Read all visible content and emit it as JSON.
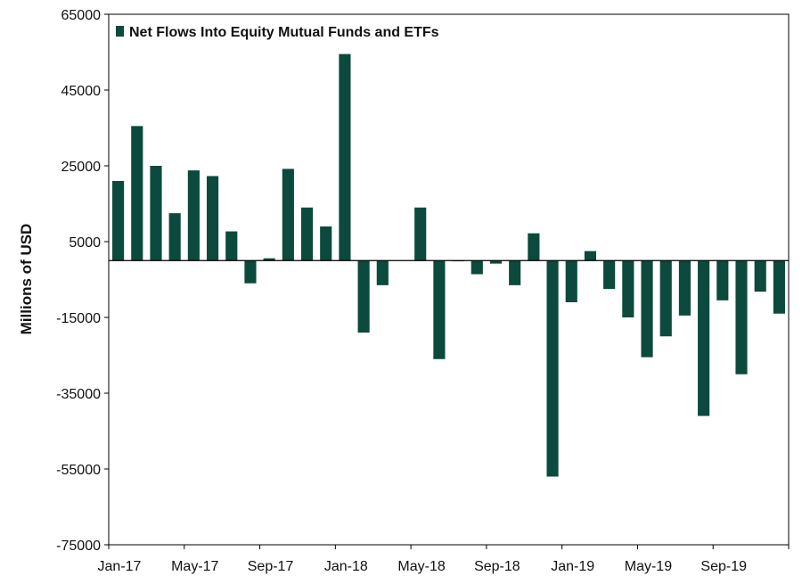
{
  "chart_data": {
    "type": "bar",
    "title": "",
    "xlabel": "",
    "ylabel": "Millions of USD",
    "ylim": [
      -75000,
      65000
    ],
    "yticks": [
      65000,
      45000,
      25000,
      5000,
      -15000,
      -35000,
      -55000,
      -75000
    ],
    "x_tick_labels": [
      "Jan-17",
      "May-17",
      "Sep-17",
      "Jan-18",
      "May-18",
      "Sep-18",
      "Jan-19",
      "May-19",
      "Sep-19"
    ],
    "x_tick_every": 4,
    "grid": false,
    "legend_position": "top-left",
    "colors": {
      "bar": "#0b4a3c",
      "axis": "#000000"
    },
    "categories": [
      "Jan-17",
      "Feb-17",
      "Mar-17",
      "Apr-17",
      "May-17",
      "Jun-17",
      "Jul-17",
      "Aug-17",
      "Sep-17",
      "Oct-17",
      "Nov-17",
      "Dec-17",
      "Jan-18",
      "Feb-18",
      "Mar-18",
      "Apr-18",
      "May-18",
      "Jun-18",
      "Jul-18",
      "Aug-18",
      "Sep-18",
      "Oct-18",
      "Nov-18",
      "Dec-18",
      "Jan-19",
      "Feb-19",
      "Mar-19",
      "Apr-19",
      "May-19",
      "Jun-19",
      "Jul-19",
      "Aug-19",
      "Sep-19",
      "Oct-19",
      "Nov-19",
      "Dec-19"
    ],
    "series": [
      {
        "name": "Net Flows Into Equity Mutual Funds and ETFs",
        "values": [
          21000,
          35500,
          25000,
          12500,
          23800,
          22300,
          7700,
          -6000,
          600,
          24200,
          14000,
          9000,
          54500,
          -19000,
          -6500,
          0,
          14000,
          -26000,
          -200,
          -3600,
          -800,
          -6500,
          7200,
          -57000,
          -11000,
          2500,
          -7500,
          -15000,
          -25500,
          -20000,
          -14500,
          -41000,
          -10500,
          -30000,
          -8200,
          -14000
        ]
      }
    ]
  }
}
